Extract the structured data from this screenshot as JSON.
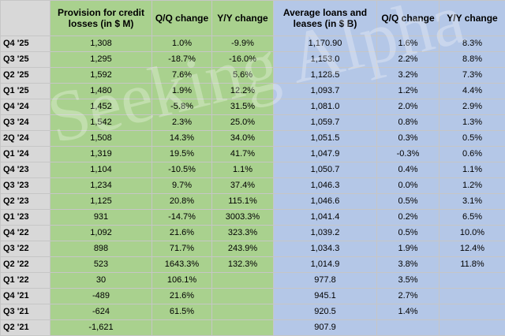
{
  "headers": {
    "provision": "Provision for credit losses (in $ M)",
    "prov_qq": "Q/Q change",
    "prov_yy": "Y/Y change",
    "loans": "Average loans and leases (in $ B)",
    "loans_qq": "Q/Q change",
    "loans_yy": "Y/Y change"
  },
  "rows": [
    {
      "quarter": "Q4 '25",
      "provision": "1,308",
      "prov_qq": "1.0%",
      "prov_yy": "-9.9%",
      "loans": "1,170.90",
      "loans_qq": "1.6%",
      "loans_yy": "8.3%"
    },
    {
      "quarter": "Q3 '25",
      "provision": "1,295",
      "prov_qq": "-18.7%",
      "prov_yy": "-16.0%",
      "loans": "1,153.0",
      "loans_qq": "2.2%",
      "loans_yy": "8.8%"
    },
    {
      "quarter": "Q2 '25",
      "provision": "1,592",
      "prov_qq": "7.6%",
      "prov_yy": "5.6%",
      "loans": "1,128.5",
      "loans_qq": "3.2%",
      "loans_yy": "7.3%"
    },
    {
      "quarter": "Q1 '25",
      "provision": "1,480",
      "prov_qq": "1.9%",
      "prov_yy": "12.2%",
      "loans": "1,093.7",
      "loans_qq": "1.2%",
      "loans_yy": "4.4%"
    },
    {
      "quarter": "Q4 '24",
      "provision": "1,452",
      "prov_qq": "-5.8%",
      "prov_yy": "31.5%",
      "loans": "1,081.0",
      "loans_qq": "2.0%",
      "loans_yy": "2.9%"
    },
    {
      "quarter": "Q3 '24",
      "provision": "1,542",
      "prov_qq": "2.3%",
      "prov_yy": "25.0%",
      "loans": "1,059.7",
      "loans_qq": "0.8%",
      "loans_yy": "1.3%"
    },
    {
      "quarter": "2Q '24",
      "provision": "1,508",
      "prov_qq": "14.3%",
      "prov_yy": "34.0%",
      "loans": "1,051.5",
      "loans_qq": "0.3%",
      "loans_yy": "0.5%"
    },
    {
      "quarter": "Q1 '24",
      "provision": "1,319",
      "prov_qq": "19.5%",
      "prov_yy": "41.7%",
      "loans": "1,047.9",
      "loans_qq": "-0.3%",
      "loans_yy": "0.6%"
    },
    {
      "quarter": "Q4 '23",
      "provision": "1,104",
      "prov_qq": "-10.5%",
      "prov_yy": "1.1%",
      "loans": "1,050.7",
      "loans_qq": "0.4%",
      "loans_yy": "1.1%"
    },
    {
      "quarter": "Q3 '23",
      "provision": "1,234",
      "prov_qq": "9.7%",
      "prov_yy": "37.4%",
      "loans": "1,046.3",
      "loans_qq": "0.0%",
      "loans_yy": "1.2%"
    },
    {
      "quarter": "Q2 '23",
      "provision": "1,125",
      "prov_qq": "20.8%",
      "prov_yy": "115.1%",
      "loans": "1,046.6",
      "loans_qq": "0.5%",
      "loans_yy": "3.1%"
    },
    {
      "quarter": "Q1 '23",
      "provision": "931",
      "prov_qq": "-14.7%",
      "prov_yy": "3003.3%",
      "loans": "1,041.4",
      "loans_qq": "0.2%",
      "loans_yy": "6.5%"
    },
    {
      "quarter": "Q4 '22",
      "provision": "1,092",
      "prov_qq": "21.6%",
      "prov_yy": "323.3%",
      "loans": "1,039.2",
      "loans_qq": "0.5%",
      "loans_yy": "10.0%"
    },
    {
      "quarter": "Q3 '22",
      "provision": "898",
      "prov_qq": "71.7%",
      "prov_yy": "243.9%",
      "loans": "1,034.3",
      "loans_qq": "1.9%",
      "loans_yy": "12.4%"
    },
    {
      "quarter": "Q2 '22",
      "provision": "523",
      "prov_qq": "1643.3%",
      "prov_yy": "132.3%",
      "loans": "1,014.9",
      "loans_qq": "3.8%",
      "loans_yy": "11.8%"
    },
    {
      "quarter": "Q1 '22",
      "provision": "30",
      "prov_qq": "106.1%",
      "prov_yy": "",
      "loans": "977.8",
      "loans_qq": "3.5%",
      "loans_yy": ""
    },
    {
      "quarter": "Q4 '21",
      "provision": "-489",
      "prov_qq": "21.6%",
      "prov_yy": "",
      "loans": "945.1",
      "loans_qq": "2.7%",
      "loans_yy": ""
    },
    {
      "quarter": "Q3 '21",
      "provision": "-624",
      "prov_qq": "61.5%",
      "prov_yy": "",
      "loans": "920.5",
      "loans_qq": "1.4%",
      "loans_yy": ""
    },
    {
      "quarter": "Q2 '21",
      "provision": "-1,621",
      "prov_qq": "",
      "prov_yy": "",
      "loans": "907.9",
      "loans_qq": "",
      "loans_yy": ""
    }
  ],
  "watermark": "Seeking Alpha",
  "colors": {
    "label_bg": "#d8d8d8",
    "provision_bg": "#a9d18e",
    "loans_bg": "#b4c7e7",
    "grid": "#c6c6c6"
  }
}
